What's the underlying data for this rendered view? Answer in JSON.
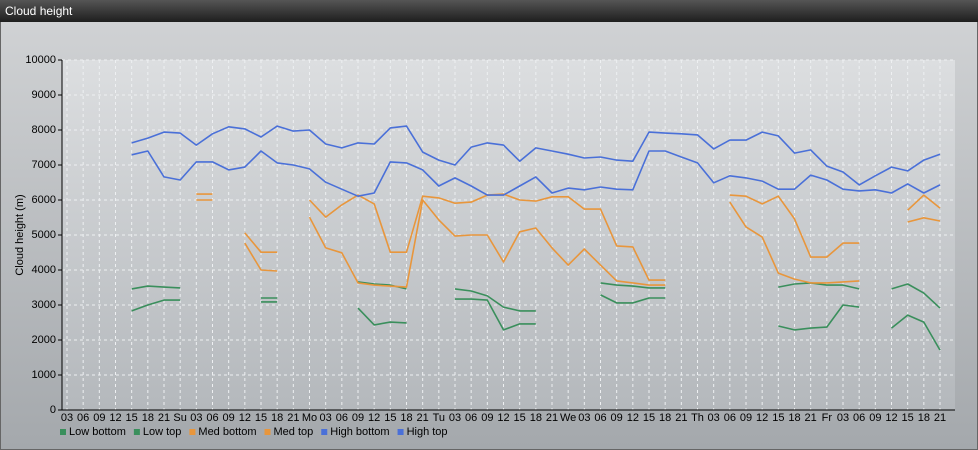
{
  "chart_data": {
    "type": "line",
    "title": "Cloud height",
    "ylabel": "Cloud height (m)",
    "categories": [
      "03",
      "06",
      "09",
      "12",
      "15",
      "18",
      "21",
      "Su",
      "03",
      "06",
      "09",
      "12",
      "15",
      "18",
      "21",
      "Mo",
      "03",
      "06",
      "09",
      "12",
      "15",
      "18",
      "21",
      "Tu",
      "03",
      "06",
      "09",
      "12",
      "15",
      "18",
      "21",
      "We",
      "03",
      "06",
      "09",
      "12",
      "15",
      "18",
      "21",
      "Th",
      "03",
      "06",
      "09",
      "12",
      "15",
      "18",
      "21",
      "Fr",
      "03",
      "06",
      "09",
      "12",
      "15",
      "18",
      "21"
    ],
    "series": [
      {
        "name": "Low bottom",
        "color": "#3a8f5c",
        "values": [
          null,
          null,
          null,
          null,
          2830,
          3000,
          3140,
          3140,
          null,
          null,
          null,
          null,
          3090,
          3090,
          null,
          null,
          null,
          null,
          2910,
          2430,
          2510,
          2490,
          null,
          null,
          3170,
          3170,
          3140,
          2290,
          2460,
          2460,
          null,
          null,
          null,
          3290,
          3060,
          3060,
          3200,
          3200,
          null,
          null,
          null,
          null,
          null,
          null,
          2400,
          2290,
          2340,
          2370,
          3000,
          2940,
          null,
          2340,
          2710,
          2510,
          1710
        ]
      },
      {
        "name": "Low top",
        "color": "#3a8f5c",
        "values": [
          null,
          null,
          null,
          null,
          3460,
          3540,
          3510,
          3490,
          null,
          null,
          null,
          null,
          3200,
          3200,
          null,
          null,
          null,
          null,
          3660,
          3600,
          3570,
          3460,
          null,
          null,
          3460,
          3400,
          3260,
          2940,
          2830,
          2830,
          null,
          null,
          null,
          3630,
          3570,
          3540,
          3490,
          3490,
          null,
          null,
          null,
          null,
          null,
          null,
          3510,
          3600,
          3630,
          3570,
          3570,
          3460,
          null,
          3460,
          3600,
          3340,
          2910
        ]
      },
      {
        "name": "Med bottom",
        "color": "#e8963c",
        "values": [
          null,
          null,
          null,
          null,
          null,
          null,
          null,
          null,
          6000,
          6000,
          null,
          4770,
          4000,
          3970,
          null,
          5510,
          4630,
          4490,
          3630,
          3570,
          3540,
          3510,
          6000,
          5430,
          4970,
          5000,
          5000,
          4230,
          5090,
          5200,
          4630,
          4140,
          4600,
          4140,
          3690,
          3630,
          3570,
          3570,
          null,
          null,
          null,
          5940,
          5230,
          4940,
          3910,
          3740,
          3630,
          3630,
          3660,
          3690,
          null,
          null,
          5370,
          5490,
          5400
        ]
      },
      {
        "name": "Med top",
        "color": "#e8963c",
        "values": [
          null,
          null,
          null,
          null,
          null,
          null,
          null,
          null,
          6170,
          6170,
          null,
          5060,
          4510,
          4510,
          null,
          6000,
          5510,
          5860,
          6140,
          5890,
          4510,
          4510,
          6110,
          6060,
          5910,
          5940,
          6140,
          6170,
          6000,
          5970,
          6090,
          6090,
          5740,
          5740,
          4690,
          4660,
          3710,
          3710,
          null,
          null,
          null,
          6140,
          6110,
          5890,
          6110,
          5460,
          4370,
          4370,
          4770,
          4770,
          null,
          null,
          5710,
          6140,
          5770
        ]
      },
      {
        "name": "High bottom",
        "color": "#4a70d8",
        "values": [
          null,
          null,
          null,
          null,
          7290,
          7400,
          6660,
          6570,
          7090,
          7090,
          6860,
          6940,
          7400,
          7060,
          7000,
          6890,
          6510,
          6310,
          6110,
          6200,
          7090,
          7060,
          6860,
          6400,
          6630,
          6400,
          6140,
          6140,
          6400,
          6660,
          6200,
          6340,
          6290,
          6370,
          6310,
          6290,
          7400,
          7400,
          7230,
          7060,
          6490,
          6690,
          6630,
          6540,
          6310,
          6310,
          6710,
          6570,
          6310,
          6260,
          6290,
          6200,
          6460,
          6200,
          6430
        ]
      },
      {
        "name": "High top",
        "color": "#4a70d8",
        "values": [
          null,
          null,
          null,
          null,
          7630,
          7770,
          7940,
          7910,
          7570,
          7890,
          8090,
          8030,
          7800,
          8110,
          7970,
          8000,
          7600,
          7490,
          7630,
          7600,
          8060,
          8110,
          7370,
          7140,
          7000,
          7510,
          7630,
          7570,
          7110,
          7490,
          7400,
          7310,
          7200,
          7230,
          7140,
          7110,
          7940,
          7910,
          7890,
          7860,
          7460,
          7710,
          7710,
          7940,
          7830,
          7340,
          7430,
          6970,
          6800,
          6430,
          6690,
          6940,
          6830,
          7140,
          7310
        ]
      }
    ],
    "ylim": [
      0,
      10000
    ],
    "yticks": [
      0,
      1000,
      2000,
      3000,
      4000,
      5000,
      6000,
      7000,
      8000,
      9000,
      10000
    ],
    "grid": true,
    "legend": "bottom-left"
  }
}
